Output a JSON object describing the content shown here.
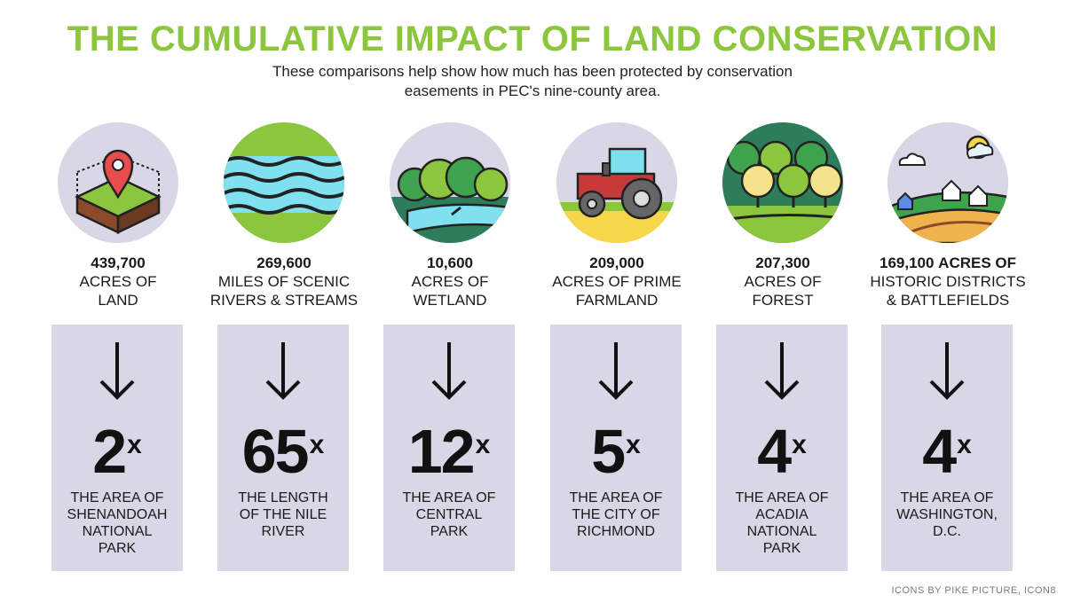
{
  "title": "THE CUMULATIVE IMPACT OF LAND CONSERVATION",
  "subtitle_line1": "These comparisons help show how much has been protected by conservation",
  "subtitle_line2": "easements in PEC's nine-county area.",
  "items": [
    {
      "number": "439,700",
      "line1": "ACRES OF",
      "line2": "LAND",
      "multiplier": "2",
      "x": "x",
      "comp1": "THE AREA OF",
      "comp2": "SHENANDOAH",
      "comp3": "NATIONAL",
      "comp4": "PARK",
      "icon": "land-pin-icon"
    },
    {
      "number": "269,600",
      "line1": "MILES OF SCENIC",
      "line2": "RIVERS & STREAMS",
      "multiplier": "65",
      "x": "x",
      "comp1": "THE LENGTH",
      "comp2": "OF THE NILE",
      "comp3": "RIVER",
      "comp4": "",
      "icon": "river-icon"
    },
    {
      "number": "10,600",
      "line1": "ACRES OF",
      "line2": "WETLAND",
      "multiplier": "12",
      "x": "x",
      "comp1": "THE AREA OF",
      "comp2": "CENTRAL",
      "comp3": "PARK",
      "comp4": "",
      "icon": "wetland-icon"
    },
    {
      "number": "209,000",
      "line1": "ACRES OF PRIME",
      "line2": "FARMLAND",
      "multiplier": "5",
      "x": "x",
      "comp1": "THE AREA OF",
      "comp2": "THE CITY OF",
      "comp3": "RICHMOND",
      "comp4": "",
      "icon": "tractor-icon"
    },
    {
      "number": "207,300",
      "line1": "ACRES OF",
      "line2": "FOREST",
      "multiplier": "4",
      "x": "x",
      "comp1": "THE AREA OF",
      "comp2": "ACADIA",
      "comp3": "NATIONAL",
      "comp4": "PARK",
      "icon": "forest-icon"
    },
    {
      "number": "169,100",
      "number_suffix": "ACRES OF",
      "line1": "HISTORIC DISTRICTS",
      "line2": "& BATTLEFIELDS",
      "multiplier": "4",
      "x": "x",
      "comp1": "THE AREA OF",
      "comp2": "WASHINGTON,",
      "comp3": "D.C.",
      "comp4": "",
      "icon": "village-icon"
    }
  ],
  "credit": "ICONS BY PIKE PICTURE, ICON8",
  "colors": {
    "title": "#8cc63f",
    "card": "#d9d7e6"
  }
}
